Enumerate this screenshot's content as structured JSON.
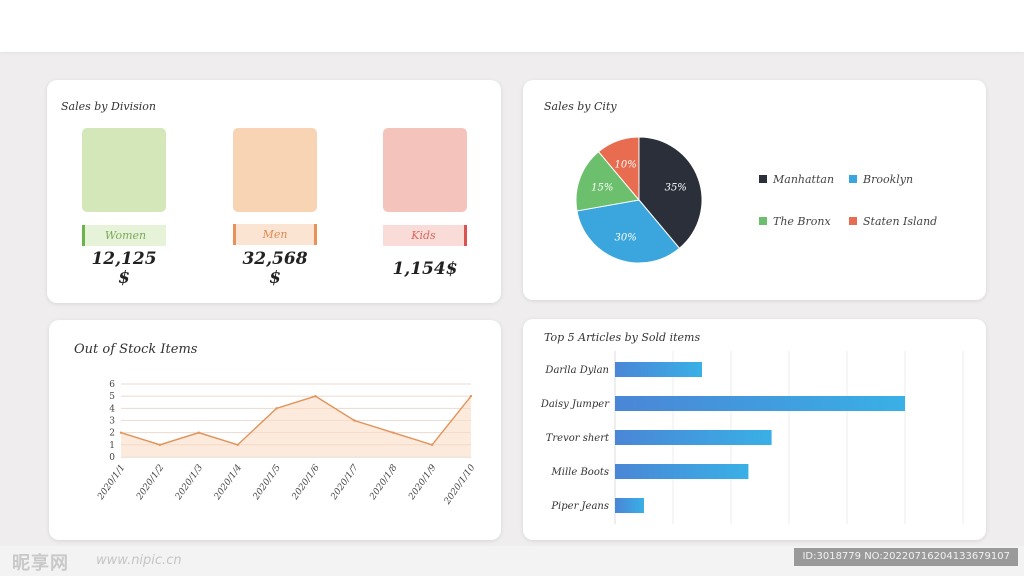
{
  "division": {
    "title": "Sales by Division",
    "items": [
      {
        "label": "Women",
        "amount": "12,125",
        "currency": "$",
        "tile_color": "#d3e7b8",
        "tag_bg": "#e7f3d8",
        "tag_text": "#7aa85a",
        "accent": "#6db34b"
      },
      {
        "label": "Men",
        "amount": "32,568",
        "currency": "$",
        "tile_color": "#f8d3b4",
        "tag_bg": "#fbe4d1",
        "tag_text": "#e08a55",
        "accent": "#e8915a"
      },
      {
        "label": "Kids",
        "amount": "1,154$",
        "currency": "",
        "tile_color": "#f4c3bc",
        "tag_bg": "#f9dcd8",
        "tag_text": "#d9675c",
        "accent": "#d9534f"
      }
    ]
  },
  "city": {
    "title": "Sales by City",
    "legend": [
      {
        "name": "Manhattan",
        "color": "#2a2f3a"
      },
      {
        "name": "Brooklyn",
        "color": "#3aa6dd"
      },
      {
        "name": "The Bronx",
        "color": "#6cbf6c"
      },
      {
        "name": "Staten Island",
        "color": "#e86c4f"
      }
    ]
  },
  "stock": {
    "title": "Out of Stock Items"
  },
  "top5": {
    "title": "Top 5 Articles by Sold items"
  },
  "watermark": {
    "logo": "昵享网",
    "url": "www.nipic.cn",
    "id": "ID:3018779 NO:20220716204133679107"
  },
  "chart_data": [
    {
      "type": "pie",
      "title": "Sales by City",
      "labels": [
        "Manhattan",
        "Brooklyn",
        "The Bronx",
        "Staten Island"
      ],
      "values": [
        35,
        30,
        15,
        10
      ],
      "data_labels": [
        "35%",
        "30%",
        "15%",
        "10%"
      ],
      "colors": [
        "#2a2f3a",
        "#3aa6dd",
        "#6cbf6c",
        "#e86c4f"
      ],
      "legend": "right"
    },
    {
      "type": "area",
      "title": "Out of Stock Items",
      "categories": [
        "2020/1/1",
        "2020/1/2",
        "2020/1/3",
        "2020/1/4",
        "2020/1/5",
        "2020/1/6",
        "2020/1/7",
        "2020/1/8",
        "2020/1/9",
        "2020/1/10"
      ],
      "values": [
        2,
        1,
        2,
        1,
        4,
        5,
        3,
        2,
        1,
        5
      ],
      "ylim": [
        0,
        6
      ],
      "yticks": [
        "0",
        "1",
        "2",
        "3",
        "4",
        "5",
        "6"
      ],
      "grid": true,
      "color": "#e2935a",
      "fill": "#fce6d6"
    },
    {
      "type": "bar",
      "orientation": "horizontal",
      "title": "Top 5 Articles by Sold items",
      "categories": [
        "Darlla Dylan",
        "Daisy Jumper",
        "Trevor shert",
        "Mille Boots",
        "Piper Jeans"
      ],
      "values": [
        15,
        50,
        27,
        23,
        5
      ],
      "xlim": [
        0,
        60
      ],
      "grid": true,
      "gradient": [
        "#4a86d6",
        "#39b0e6"
      ]
    }
  ]
}
